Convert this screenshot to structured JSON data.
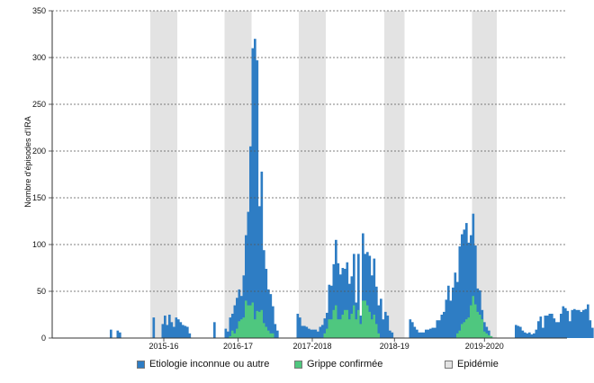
{
  "chart_data": {
    "type": "bar",
    "title": "",
    "xlabel": "",
    "ylabel": "Nombre d'épisodes d'IRA",
    "ylim": [
      0,
      350
    ],
    "yticks": [
      0,
      50,
      100,
      150,
      200,
      250,
      300,
      350
    ],
    "grid": "horizontal dashed",
    "stacked": true,
    "season_labels": [
      "2015-16",
      "2016-17",
      "2017-2018",
      "2018-19",
      "2019-2020"
    ],
    "epidemic_periods_week_index": [
      [
        30,
        41
      ],
      [
        63,
        74
      ],
      [
        96,
        107
      ],
      [
        134,
        142
      ],
      [
        173,
        183
      ]
    ],
    "series": [
      {
        "name": "Etiologie inconnue ou autre",
        "color": "#2e7dc4",
        "values": [
          0,
          0,
          0,
          0,
          0,
          0,
          0,
          0,
          0,
          0,
          0,
          0,
          9,
          0,
          0,
          8,
          6,
          0,
          0,
          0,
          0,
          0,
          0,
          0,
          0,
          0,
          0,
          0,
          0,
          0,
          0,
          22,
          0,
          0,
          0,
          15,
          24,
          14,
          25,
          17,
          12,
          22,
          20,
          17,
          14,
          13,
          12,
          5,
          0,
          0,
          0,
          0,
          0,
          0,
          0,
          0,
          0,
          0,
          17,
          0,
          0,
          0,
          0,
          10,
          7,
          20,
          18,
          30,
          33,
          34,
          25,
          45,
          70,
          100,
          170,
          272,
          300,
          268,
          113,
          148,
          78,
          62,
          44,
          42,
          29,
          15,
          8,
          0,
          0,
          0,
          0,
          0,
          0,
          0,
          0,
          26,
          22,
          13,
          13,
          12,
          10,
          9,
          9,
          9,
          7,
          12,
          14,
          16,
          17,
          37,
          36,
          49,
          70,
          60,
          48,
          50,
          44,
          51,
          38,
          40,
          55,
          18,
          60,
          9,
          72,
          50,
          57,
          60,
          47,
          60,
          40,
          30,
          42,
          20,
          28,
          24,
          8,
          6,
          0,
          0,
          0,
          0,
          0,
          0,
          0,
          20,
          17,
          12,
          9,
          6,
          6,
          6,
          9,
          9,
          10,
          11,
          11,
          19,
          19,
          25,
          28,
          41,
          56,
          40,
          54,
          70,
          55,
          90,
          96,
          99,
          103,
          80,
          75,
          88,
          63,
          25,
          26,
          10,
          10,
          7,
          5,
          0,
          0,
          0,
          0,
          0,
          0,
          0,
          0,
          0,
          0,
          0,
          14,
          13,
          12,
          8,
          6,
          5,
          6,
          4,
          5,
          9,
          18,
          23,
          11,
          24,
          24,
          26,
          26,
          21,
          17,
          17,
          26,
          34,
          32,
          29,
          18,
          30,
          31,
          30,
          30,
          28,
          30,
          31,
          36,
          19,
          11
        ]
      },
      {
        "name": "Grippe confirmée",
        "color": "#4fc77f",
        "values": [
          0,
          0,
          0,
          0,
          0,
          0,
          0,
          0,
          0,
          0,
          0,
          0,
          0,
          0,
          0,
          0,
          0,
          0,
          0,
          0,
          0,
          0,
          0,
          0,
          0,
          0,
          0,
          0,
          0,
          0,
          0,
          0,
          0,
          0,
          0,
          0,
          0,
          0,
          0,
          0,
          0,
          0,
          0,
          0,
          0,
          0,
          0,
          0,
          0,
          0,
          0,
          0,
          0,
          0,
          0,
          0,
          0,
          0,
          0,
          0,
          0,
          0,
          0,
          0,
          0,
          2,
          8,
          5,
          10,
          18,
          20,
          22,
          40,
          35,
          35,
          38,
          20,
          29,
          28,
          30,
          16,
          12,
          8,
          5,
          5,
          0,
          0,
          0,
          0,
          0,
          0,
          0,
          0,
          0,
          0,
          0,
          0,
          0,
          0,
          0,
          0,
          0,
          0,
          0,
          0,
          0,
          0,
          5,
          10,
          20,
          20,
          30,
          35,
          20,
          20,
          25,
          30,
          30,
          20,
          26,
          35,
          20,
          30,
          15,
          40,
          40,
          35,
          28,
          20,
          25,
          15,
          5,
          0,
          0,
          0,
          0,
          0,
          0,
          0,
          0,
          0,
          0,
          0,
          0,
          0,
          0,
          0,
          0,
          0,
          0,
          0,
          0,
          0,
          0,
          0,
          0,
          0,
          0,
          0,
          0,
          0,
          0,
          0,
          0,
          0,
          0,
          5,
          8,
          15,
          17,
          20,
          22,
          35,
          45,
          36,
          28,
          25,
          20,
          7,
          5,
          3,
          2,
          0,
          0,
          0,
          0,
          0,
          0,
          0,
          0,
          0,
          0,
          0,
          0,
          0,
          0,
          0,
          0,
          0,
          0,
          0,
          0,
          0,
          0,
          0,
          0,
          0,
          0,
          0,
          0,
          0,
          0,
          0,
          0,
          0,
          0,
          0,
          0,
          0,
          0,
          0,
          0,
          0,
          0,
          0,
          0,
          0,
          0,
          0,
          0,
          0,
          0,
          0,
          0,
          0,
          0,
          0,
          0,
          0,
          0,
          0
        ]
      }
    ],
    "legend": {
      "position": "bottom",
      "items": [
        {
          "label": "Etiologie inconnue ou autre",
          "color": "#2e7dc4"
        },
        {
          "label": "Grippe confirmée",
          "color": "#4fc77f"
        },
        {
          "label": "Epidémie",
          "color": "#e3e3e3"
        }
      ]
    },
    "colors": {
      "epidemic": "#e3e3e3",
      "grid": "#555555"
    }
  }
}
